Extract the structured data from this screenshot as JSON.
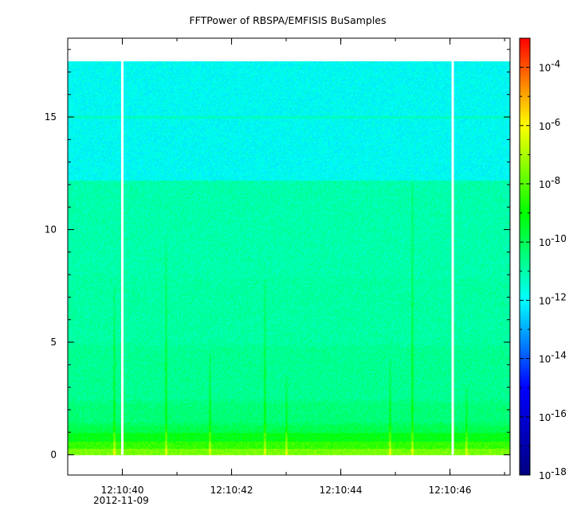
{
  "chart_data": {
    "type": "heatmap",
    "title": "FFTPower of RBSPA/EMFISIS  BuSamples",
    "xlabel": "",
    "ylabel": "",
    "x_axis": {
      "start_seconds": 39.0,
      "end_seconds": 47.1,
      "ticks": [
        {
          "seconds": 40,
          "label": "12:10:40"
        },
        {
          "seconds": 42,
          "label": "12:10:42"
        },
        {
          "seconds": 44,
          "label": "12:10:44"
        },
        {
          "seconds": 46,
          "label": "12:10:46"
        }
      ],
      "minor_tick_step": 1,
      "date_label": "2012-11-09"
    },
    "y_axis": {
      "ylim": [
        -0.9,
        18.5
      ],
      "ticks": [
        0,
        5,
        10,
        15
      ],
      "minor_tick_step": 1
    },
    "data_extent": {
      "y": [
        0,
        17.5
      ]
    },
    "gaps_seconds": [
      40.0,
      46.05
    ],
    "colorbar": {
      "scale": "log",
      "range": [
        1e-18,
        0.001
      ],
      "tick_labels": [
        {
          "base": "10",
          "exp": "-4",
          "value": 0.0001
        },
        {
          "base": "10",
          "exp": "-6",
          "value": 1e-06
        },
        {
          "base": "10",
          "exp": "-8",
          "value": 1e-08
        },
        {
          "base": "10",
          "exp": "-10",
          "value": 1e-10
        },
        {
          "base": "10",
          "exp": "-12",
          "value": 1e-12
        },
        {
          "base": "10",
          "exp": "-14",
          "value": 1e-14
        },
        {
          "base": "10",
          "exp": "-16",
          "value": 1e-16
        },
        {
          "base": "10",
          "exp": "-18",
          "value": 1e-18
        }
      ],
      "colormap": [
        "#000080",
        "#0000ff",
        "#00ffff",
        "#00ff00",
        "#ffff00",
        "#ff0000"
      ]
    },
    "spectral_profile": [
      {
        "y_from": 0.0,
        "y_to": 0.3,
        "log_power": -7.6
      },
      {
        "y_from": 0.3,
        "y_to": 0.6,
        "log_power": -8.4
      },
      {
        "y_from": 0.6,
        "y_to": 1.0,
        "log_power": -9.2
      },
      {
        "y_from": 1.0,
        "y_to": 1.5,
        "log_power": -9.9
      },
      {
        "y_from": 1.5,
        "y_to": 2.5,
        "log_power": -10.4
      },
      {
        "y_from": 2.5,
        "y_to": 5.0,
        "log_power": -10.7
      },
      {
        "y_from": 5.0,
        "y_to": 8.0,
        "log_power": -10.9
      },
      {
        "y_from": 8.0,
        "y_to": 12.2,
        "log_power": -11.0
      },
      {
        "y_from": 12.2,
        "y_to": 17.5,
        "log_power": -11.9
      }
    ],
    "bursts": [
      {
        "seconds": 39.85,
        "y_top": 7.5
      },
      {
        "seconds": 40.8,
        "y_top": 9.5
      },
      {
        "seconds": 41.6,
        "y_top": 4.5
      },
      {
        "seconds": 42.6,
        "y_top": 7.8
      },
      {
        "seconds": 43.0,
        "y_top": 3.5
      },
      {
        "seconds": 44.9,
        "y_top": 4.2
      },
      {
        "seconds": 45.3,
        "y_top": 12.5
      },
      {
        "seconds": 46.3,
        "y_top": 3.0
      }
    ],
    "line_features": [
      {
        "y": 15.0,
        "log_power": -11.2
      }
    ]
  }
}
